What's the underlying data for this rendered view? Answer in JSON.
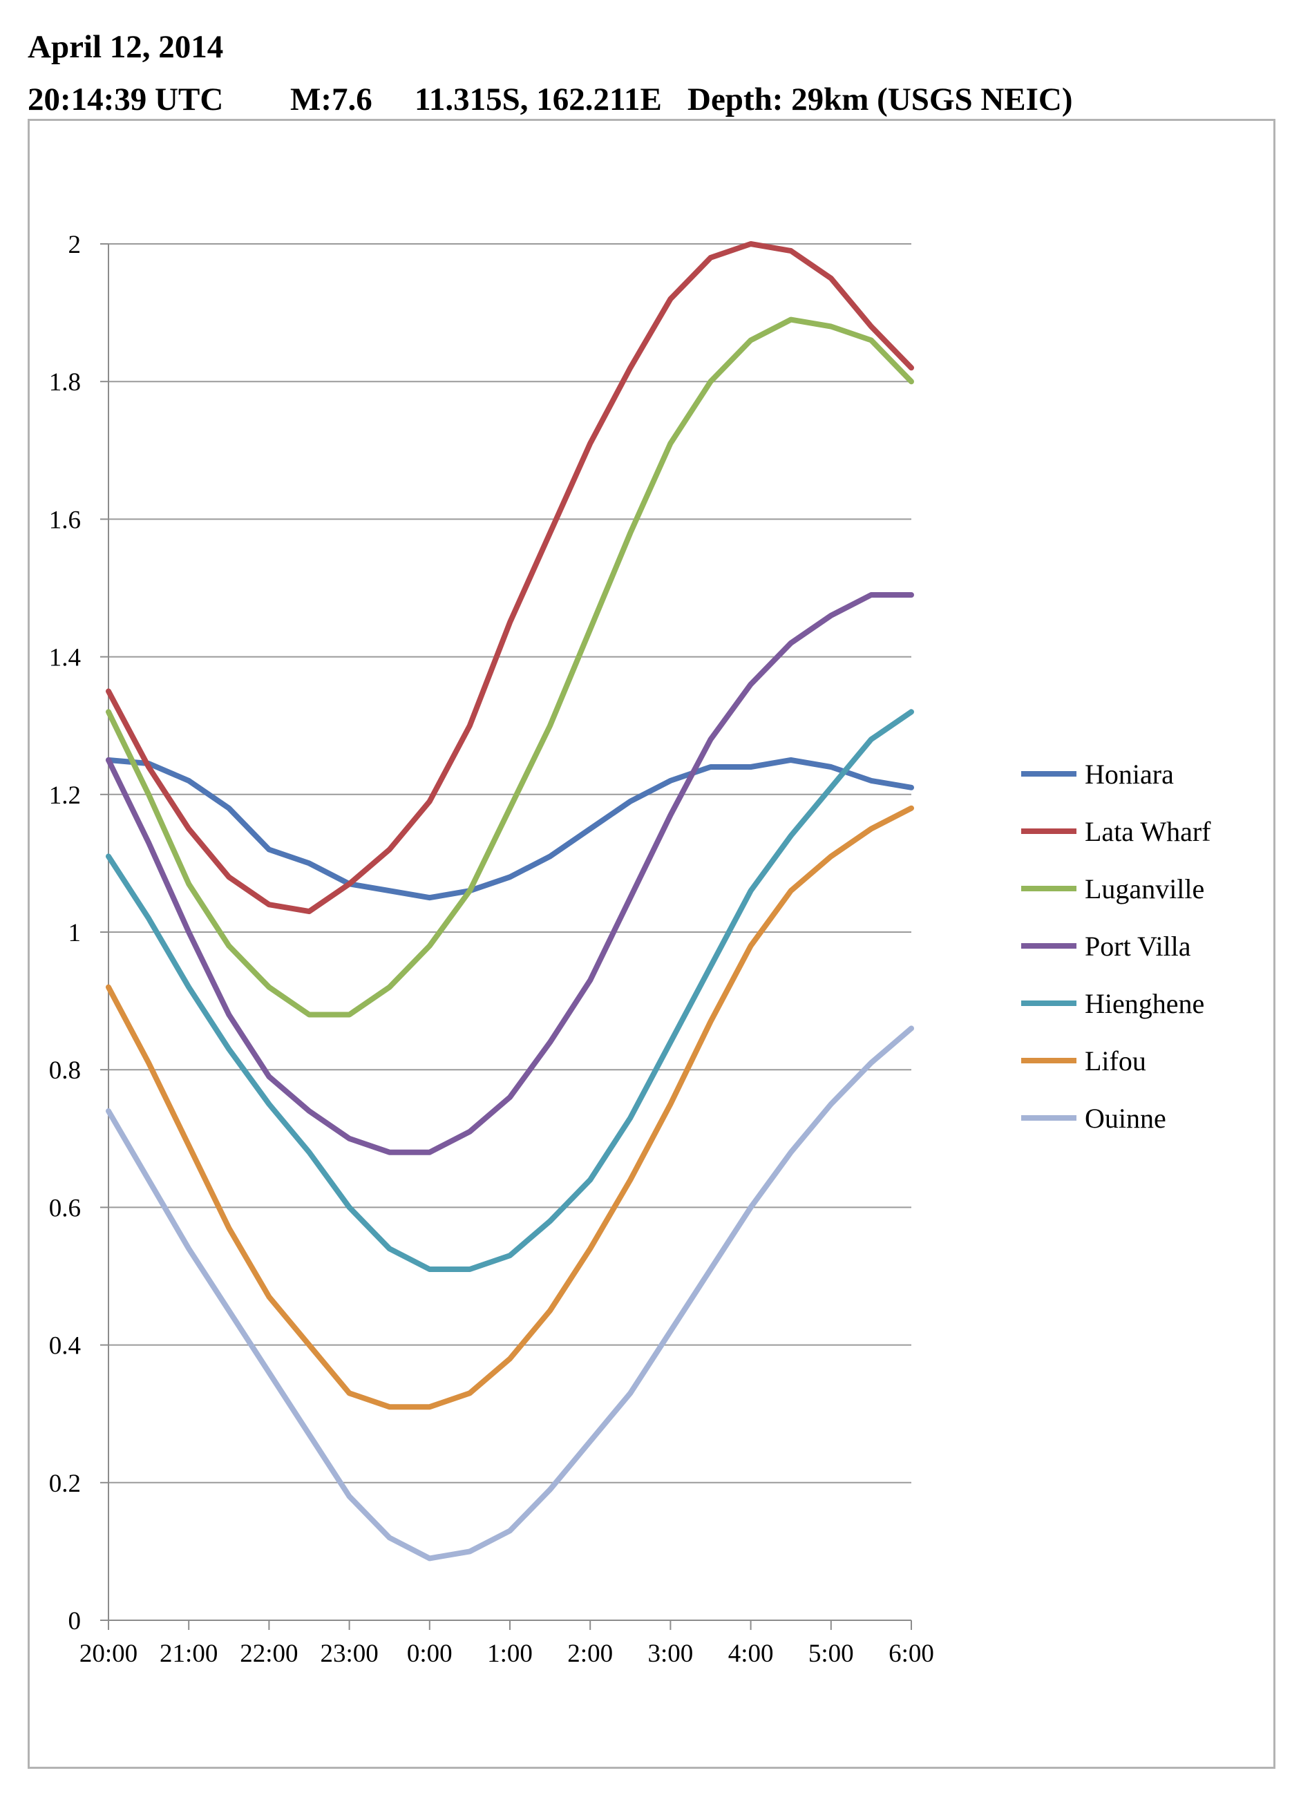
{
  "header": {
    "date": "April 12, 2014",
    "time": "20:14:39 UTC",
    "magnitude": "M:7.6",
    "location": "11.315S, 162.211E",
    "depth": "Depth: 29km (USGS NEIC)"
  },
  "chart_data": {
    "type": "line",
    "title": "",
    "xlabel": "",
    "ylabel": "",
    "ylim": [
      0,
      2
    ],
    "yticks": [
      0,
      0.2,
      0.4,
      0.6,
      0.8,
      1,
      1.2,
      1.4,
      1.6,
      1.8,
      2
    ],
    "ytick_labels": [
      "0",
      "0.2",
      "0.4",
      "0.6",
      "0.8",
      "1",
      "1.2",
      "1.4",
      "1.6",
      "1.8",
      "2"
    ],
    "x_unit": "hours (UTC), 12-13 April 2014",
    "xlim": [
      "20:00",
      "6:00"
    ],
    "xticks": [
      "20:00",
      "21:00",
      "22:00",
      "23:00",
      "0:00",
      "1:00",
      "2:00",
      "3:00",
      "4:00",
      "5:00",
      "6:00"
    ],
    "grid": "horizontal",
    "legend_position": "right",
    "series": [
      {
        "name": "Honiara",
        "color": "#4f76b5",
        "x": [
          "20:00",
          "20:30",
          "21:00",
          "21:30",
          "22:00",
          "22:30",
          "23:00",
          "23:30",
          "0:00",
          "0:30",
          "1:00",
          "1:30",
          "2:00",
          "2:30",
          "3:00",
          "3:30",
          "4:00",
          "4:30",
          "5:00",
          "5:30",
          "6:00"
        ],
        "values": [
          1.25,
          1.245,
          1.22,
          1.18,
          1.12,
          1.1,
          1.07,
          1.06,
          1.05,
          1.06,
          1.08,
          1.11,
          1.15,
          1.19,
          1.22,
          1.24,
          1.24,
          1.25,
          1.24,
          1.22,
          1.21
        ]
      },
      {
        "name": "Lata Wharf",
        "color": "#b5474b",
        "x": [
          "20:00",
          "20:30",
          "21:00",
          "21:30",
          "22:00",
          "22:30",
          "23:00",
          "23:30",
          "0:00",
          "0:30",
          "1:00",
          "1:30",
          "2:00",
          "2:30",
          "3:00",
          "3:30",
          "4:00",
          "4:30",
          "5:00",
          "5:30",
          "6:00"
        ],
        "values": [
          1.35,
          1.24,
          1.15,
          1.08,
          1.04,
          1.03,
          1.07,
          1.12,
          1.19,
          1.3,
          1.45,
          1.58,
          1.71,
          1.82,
          1.92,
          1.98,
          2.0,
          1.99,
          1.95,
          1.88,
          1.82
        ]
      },
      {
        "name": "Luganville",
        "color": "#94b65a",
        "x": [
          "20:00",
          "20:30",
          "21:00",
          "21:30",
          "22:00",
          "22:30",
          "23:00",
          "23:30",
          "0:00",
          "0:30",
          "1:00",
          "1:30",
          "2:00",
          "2:30",
          "3:00",
          "3:30",
          "4:00",
          "4:30",
          "5:00",
          "5:30",
          "6:00"
        ],
        "values": [
          1.32,
          1.2,
          1.07,
          0.98,
          0.92,
          0.88,
          0.88,
          0.92,
          0.98,
          1.06,
          1.18,
          1.3,
          1.44,
          1.58,
          1.71,
          1.8,
          1.86,
          1.89,
          1.88,
          1.86,
          1.8
        ]
      },
      {
        "name": "Port Villa",
        "color": "#7b5a9c",
        "x": [
          "20:00",
          "20:30",
          "21:00",
          "21:30",
          "22:00",
          "22:30",
          "23:00",
          "23:30",
          "0:00",
          "0:30",
          "1:00",
          "1:30",
          "2:00",
          "2:30",
          "3:00",
          "3:30",
          "4:00",
          "4:30",
          "5:00",
          "5:30",
          "6:00"
        ],
        "values": [
          1.25,
          1.13,
          1.0,
          0.88,
          0.79,
          0.74,
          0.7,
          0.68,
          0.68,
          0.71,
          0.76,
          0.84,
          0.93,
          1.05,
          1.17,
          1.28,
          1.36,
          1.42,
          1.46,
          1.49,
          1.49
        ]
      },
      {
        "name": "Hienghene",
        "color": "#4e9db2",
        "x": [
          "20:00",
          "20:30",
          "21:00",
          "21:30",
          "22:00",
          "22:30",
          "23:00",
          "23:30",
          "0:00",
          "0:30",
          "1:00",
          "1:30",
          "2:00",
          "2:30",
          "3:00",
          "3:30",
          "4:00",
          "4:30",
          "5:00",
          "5:30",
          "6:00"
        ],
        "values": [
          1.11,
          1.02,
          0.92,
          0.83,
          0.75,
          0.68,
          0.6,
          0.54,
          0.51,
          0.51,
          0.53,
          0.58,
          0.64,
          0.73,
          0.84,
          0.95,
          1.06,
          1.14,
          1.21,
          1.28,
          1.32
        ]
      },
      {
        "name": "Lifou",
        "color": "#d98f3f",
        "x": [
          "20:00",
          "20:30",
          "21:00",
          "21:30",
          "22:00",
          "22:30",
          "23:00",
          "23:30",
          "0:00",
          "0:30",
          "1:00",
          "1:30",
          "2:00",
          "2:30",
          "3:00",
          "3:30",
          "4:00",
          "4:30",
          "5:00",
          "5:30",
          "6:00"
        ],
        "values": [
          0.92,
          0.81,
          0.69,
          0.57,
          0.47,
          0.4,
          0.33,
          0.31,
          0.31,
          0.33,
          0.38,
          0.45,
          0.54,
          0.64,
          0.75,
          0.87,
          0.98,
          1.06,
          1.11,
          1.15,
          1.18
        ]
      },
      {
        "name": "Ouinne",
        "color": "#a4b3d6",
        "x": [
          "20:00",
          "20:30",
          "21:00",
          "21:30",
          "22:00",
          "22:30",
          "23:00",
          "23:30",
          "0:00",
          "0:30",
          "1:00",
          "1:30",
          "2:00",
          "2:30",
          "3:00",
          "3:30",
          "4:00",
          "4:30",
          "5:00",
          "5:30",
          "6:00"
        ],
        "values": [
          0.74,
          0.64,
          0.54,
          0.45,
          0.36,
          0.27,
          0.18,
          0.12,
          0.09,
          0.1,
          0.13,
          0.19,
          0.26,
          0.33,
          0.42,
          0.51,
          0.6,
          0.68,
          0.75,
          0.81,
          0.86
        ]
      }
    ]
  }
}
